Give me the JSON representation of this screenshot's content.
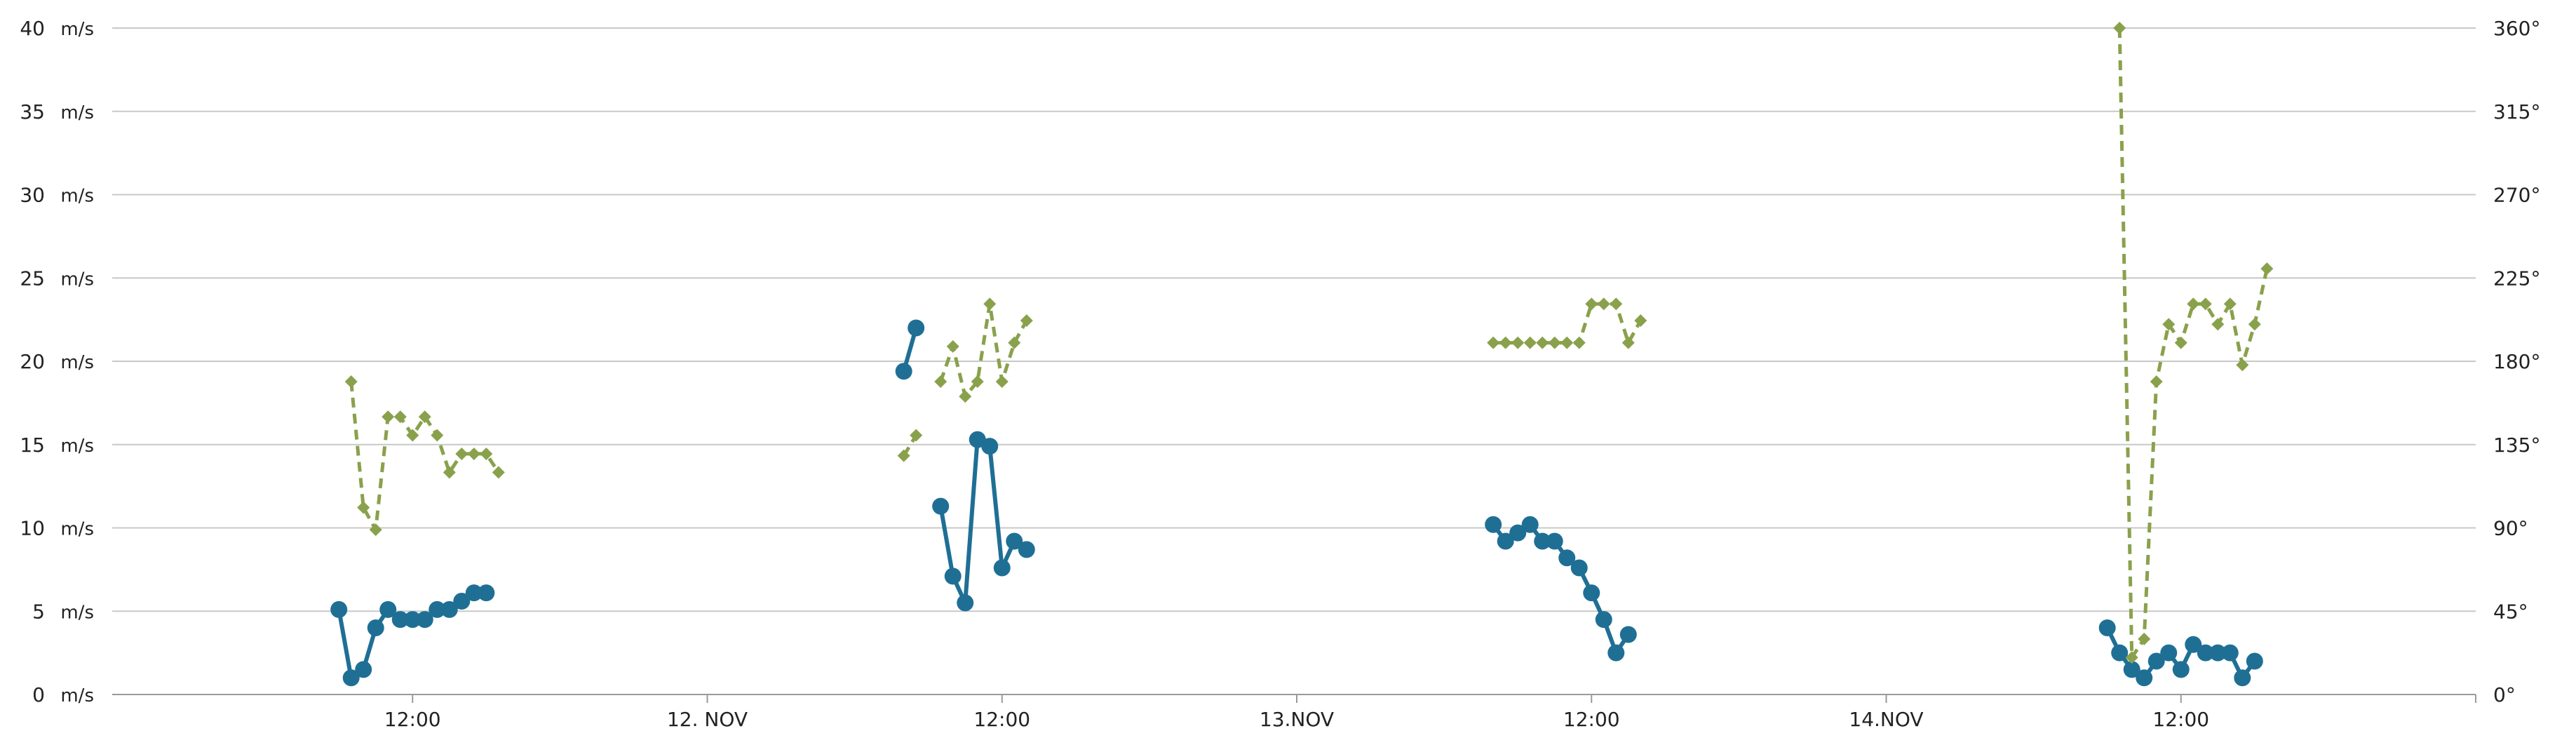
{
  "chart_data": {
    "type": "line",
    "x_axis": {
      "start": "2022-11-11 00:00",
      "end": "2022-11-15 00:00",
      "ticks": [
        {
          "label": "12:00",
          "value": "2022-11-11 12:00"
        },
        {
          "label": "12. NOV",
          "value": "2022-11-12 00:00"
        },
        {
          "label": "12:00",
          "value": "2022-11-12 12:00"
        },
        {
          "label": "13.NOV",
          "value": "2022-11-13 00:00"
        },
        {
          "label": "12:00",
          "value": "2022-11-13 12:00"
        },
        {
          "label": "14.NOV",
          "value": "2022-11-14 00:00"
        },
        {
          "label": "12:00",
          "value": "2022-11-14 12:00"
        }
      ]
    },
    "y_left": {
      "unit": "m/s",
      "ylim": [
        0,
        40
      ],
      "ticks": [
        {
          "value": 0,
          "label": "0"
        },
        {
          "value": 5,
          "label": "5"
        },
        {
          "value": 10,
          "label": "10"
        },
        {
          "value": 15,
          "label": "15"
        },
        {
          "value": 20,
          "label": "20"
        },
        {
          "value": 25,
          "label": "25"
        },
        {
          "value": 30,
          "label": "30"
        },
        {
          "value": 35,
          "label": "35"
        },
        {
          "value": 40,
          "label": "40"
        }
      ]
    },
    "y_right": {
      "ylim": [
        0,
        360
      ],
      "ticks": [
        {
          "value": 0,
          "label": "0°"
        },
        {
          "value": 45,
          "label": "45°"
        },
        {
          "value": 90,
          "label": "90°"
        },
        {
          "value": 135,
          "label": "135°"
        },
        {
          "value": 180,
          "label": "180°"
        },
        {
          "value": 225,
          "label": "225°"
        },
        {
          "value": 270,
          "label": "270°"
        },
        {
          "value": 315,
          "label": "315°"
        },
        {
          "value": 360,
          "label": "360°"
        }
      ]
    },
    "grid": true,
    "series": [
      {
        "key": "speed",
        "axis": "left",
        "color": "#1f6f95",
        "style": "solid",
        "marker": "circle",
        "segments": [
          [
            {
              "x": "2022-11-11 09:00",
              "y": 5.1
            },
            {
              "x": "2022-11-11 09:30",
              "y": 1.0
            },
            {
              "x": "2022-11-11 10:00",
              "y": 1.5
            },
            {
              "x": "2022-11-11 10:30",
              "y": 4.0
            },
            {
              "x": "2022-11-11 11:00",
              "y": 5.1
            },
            {
              "x": "2022-11-11 11:30",
              "y": 4.5
            },
            {
              "x": "2022-11-11 12:00",
              "y": 4.5
            },
            {
              "x": "2022-11-11 12:30",
              "y": 4.5
            },
            {
              "x": "2022-11-11 13:00",
              "y": 5.1
            },
            {
              "x": "2022-11-11 13:30",
              "y": 5.1
            },
            {
              "x": "2022-11-11 14:00",
              "y": 5.6
            },
            {
              "x": "2022-11-11 14:30",
              "y": 6.1
            },
            {
              "x": "2022-11-11 15:00",
              "y": 6.1
            }
          ],
          [
            {
              "x": "2022-11-12 08:00",
              "y": 19.4
            },
            {
              "x": "2022-11-12 08:30",
              "y": 22.0
            }
          ],
          [
            {
              "x": "2022-11-12 09:30",
              "y": 11.3
            },
            {
              "x": "2022-11-12 10:00",
              "y": 7.1
            },
            {
              "x": "2022-11-12 10:30",
              "y": 5.5
            },
            {
              "x": "2022-11-12 11:00",
              "y": 15.3
            },
            {
              "x": "2022-11-12 11:30",
              "y": 14.9
            },
            {
              "x": "2022-11-12 12:00",
              "y": 7.6
            },
            {
              "x": "2022-11-12 12:30",
              "y": 9.2
            },
            {
              "x": "2022-11-12 13:00",
              "y": 8.7
            }
          ],
          [
            {
              "x": "2022-11-13 08:00",
              "y": 10.2
            },
            {
              "x": "2022-11-13 08:30",
              "y": 9.2
            },
            {
              "x": "2022-11-13 09:00",
              "y": 9.7
            },
            {
              "x": "2022-11-13 09:30",
              "y": 10.2
            },
            {
              "x": "2022-11-13 10:00",
              "y": 9.2
            },
            {
              "x": "2022-11-13 10:30",
              "y": 9.2
            },
            {
              "x": "2022-11-13 11:00",
              "y": 8.2
            },
            {
              "x": "2022-11-13 11:30",
              "y": 7.6
            },
            {
              "x": "2022-11-13 12:00",
              "y": 6.1
            },
            {
              "x": "2022-11-13 12:30",
              "y": 4.5
            },
            {
              "x": "2022-11-13 13:00",
              "y": 2.5
            },
            {
              "x": "2022-11-13 13:30",
              "y": 3.6
            }
          ],
          [
            {
              "x": "2022-11-14 09:00",
              "y": 4.0
            },
            {
              "x": "2022-11-14 09:30",
              "y": 2.5
            },
            {
              "x": "2022-11-14 10:00",
              "y": 1.5
            },
            {
              "x": "2022-11-14 10:30",
              "y": 1.0
            },
            {
              "x": "2022-11-14 11:00",
              "y": 2.0
            },
            {
              "x": "2022-11-14 11:30",
              "y": 2.5
            },
            {
              "x": "2022-11-14 12:00",
              "y": 1.5
            },
            {
              "x": "2022-11-14 12:30",
              "y": 3.0
            },
            {
              "x": "2022-11-14 13:00",
              "y": 2.5
            },
            {
              "x": "2022-11-14 13:30",
              "y": 2.5
            },
            {
              "x": "2022-11-14 14:00",
              "y": 2.5
            },
            {
              "x": "2022-11-14 14:30",
              "y": 1.0
            },
            {
              "x": "2022-11-14 15:00",
              "y": 2.0
            }
          ]
        ]
      },
      {
        "key": "direction",
        "axis": "right",
        "color": "#8aa14c",
        "style": "dashed",
        "marker": "diamond",
        "segments": [
          [
            {
              "x": "2022-11-11 09:30",
              "y": 169
            },
            {
              "x": "2022-11-11 10:00",
              "y": 101
            },
            {
              "x": "2022-11-11 10:30",
              "y": 89
            },
            {
              "x": "2022-11-11 11:00",
              "y": 150
            },
            {
              "x": "2022-11-11 11:30",
              "y": 150
            },
            {
              "x": "2022-11-11 12:00",
              "y": 140
            },
            {
              "x": "2022-11-11 12:30",
              "y": 150
            },
            {
              "x": "2022-11-11 13:00",
              "y": 140
            },
            {
              "x": "2022-11-11 13:30",
              "y": 120
            },
            {
              "x": "2022-11-11 14:00",
              "y": 130
            },
            {
              "x": "2022-11-11 14:30",
              "y": 130
            },
            {
              "x": "2022-11-11 15:00",
              "y": 130
            },
            {
              "x": "2022-11-11 15:30",
              "y": 120
            }
          ],
          [
            {
              "x": "2022-11-12 08:00",
              "y": 129
            },
            {
              "x": "2022-11-12 08:30",
              "y": 140
            }
          ],
          [
            {
              "x": "2022-11-12 09:30",
              "y": 169
            },
            {
              "x": "2022-11-12 10:00",
              "y": 188
            },
            {
              "x": "2022-11-12 10:30",
              "y": 161
            },
            {
              "x": "2022-11-12 11:00",
              "y": 169
            },
            {
              "x": "2022-11-12 11:30",
              "y": 211
            },
            {
              "x": "2022-11-12 12:00",
              "y": 169
            },
            {
              "x": "2022-11-12 12:30",
              "y": 190
            },
            {
              "x": "2022-11-12 13:00",
              "y": 202
            }
          ],
          [
            {
              "x": "2022-11-13 08:00",
              "y": 190
            },
            {
              "x": "2022-11-13 08:30",
              "y": 190
            },
            {
              "x": "2022-11-13 09:00",
              "y": 190
            },
            {
              "x": "2022-11-13 09:30",
              "y": 190
            },
            {
              "x": "2022-11-13 10:00",
              "y": 190
            },
            {
              "x": "2022-11-13 10:30",
              "y": 190
            },
            {
              "x": "2022-11-13 11:00",
              "y": 190
            },
            {
              "x": "2022-11-13 11:30",
              "y": 190
            },
            {
              "x": "2022-11-13 12:00",
              "y": 211
            },
            {
              "x": "2022-11-13 12:30",
              "y": 211
            },
            {
              "x": "2022-11-13 13:00",
              "y": 211
            },
            {
              "x": "2022-11-13 13:30",
              "y": 190
            },
            {
              "x": "2022-11-13 14:00",
              "y": 202
            }
          ],
          [
            {
              "x": "2022-11-14 09:30",
              "y": 360
            },
            {
              "x": "2022-11-14 10:00",
              "y": 20
            },
            {
              "x": "2022-11-14 10:30",
              "y": 30
            },
            {
              "x": "2022-11-14 11:00",
              "y": 169
            },
            {
              "x": "2022-11-14 11:30",
              "y": 200
            },
            {
              "x": "2022-11-14 12:00",
              "y": 190
            },
            {
              "x": "2022-11-14 12:30",
              "y": 211
            },
            {
              "x": "2022-11-14 13:00",
              "y": 211
            },
            {
              "x": "2022-11-14 13:30",
              "y": 200
            },
            {
              "x": "2022-11-14 14:00",
              "y": 211
            },
            {
              "x": "2022-11-14 14:30",
              "y": 178
            },
            {
              "x": "2022-11-14 15:00",
              "y": 200
            },
            {
              "x": "2022-11-14 15:30",
              "y": 230
            }
          ]
        ]
      }
    ]
  }
}
